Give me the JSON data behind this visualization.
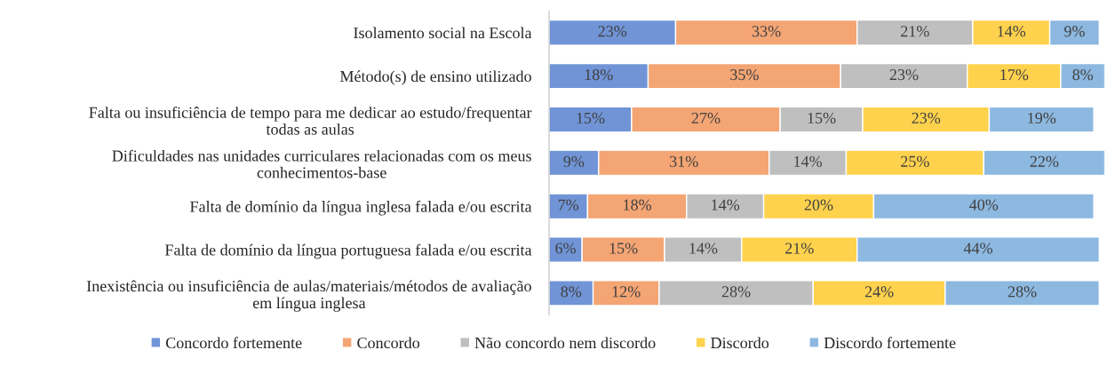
{
  "chart_data": {
    "type": "bar",
    "orientation": "horizontal",
    "stacked": true,
    "tick_labels": "y",
    "legend": "bottom",
    "grid": false,
    "categories": [
      "Isolamento social na Escola",
      "Método(s) de ensino utilizado",
      "Falta ou insuficiência de tempo para me dedicar ao estudo/frequentar\ntodas as aulas",
      "Dificuldades nas unidades curriculares relacionadas com os meus\nconhecimentos-base",
      "Falta de domínio da língua inglesa falada e/ou escrita",
      "Falta de domínio da língua portuguesa falada e/ou escrita",
      "Inexistência ou insuficiência de aulas/materiais/métodos de avaliação\nem língua inglesa"
    ],
    "series": [
      {
        "name": "Concordo fortemente",
        "color": "#7094d6",
        "values": [
          23,
          18,
          15,
          9,
          7,
          6,
          8
        ],
        "value_labels": [
          "23%",
          "18%",
          "15%",
          "9%",
          "7%",
          "6%",
          "8%"
        ]
      },
      {
        "name": "Concordo",
        "color": "#f4a574",
        "values": [
          33,
          35,
          27,
          31,
          18,
          15,
          12
        ],
        "value_labels": [
          "33%",
          "35%",
          "27%",
          "31%",
          "18%",
          "15%",
          "12%"
        ]
      },
      {
        "name": "Não concordo nem discordo",
        "color": "#bfbfbf",
        "values": [
          21,
          23,
          15,
          14,
          14,
          14,
          28
        ],
        "value_labels": [
          "21%",
          "23%",
          "15%",
          "14%",
          "14%",
          "14%",
          "28%"
        ]
      },
      {
        "name": "Discordo",
        "color": "#ffd24d",
        "values": [
          14,
          17,
          23,
          25,
          20,
          21,
          24
        ],
        "value_labels": [
          "14%",
          "17%",
          "23%",
          "25%",
          "20%",
          "21%",
          "24%"
        ]
      },
      {
        "name": "Discordo fortemente",
        "color": "#8db8e0",
        "values": [
          9,
          8,
          19,
          22,
          40,
          44,
          28
        ],
        "value_labels": [
          "9%",
          "8%",
          "19%",
          "22%",
          "40%",
          "44%",
          "28%"
        ]
      }
    ]
  }
}
